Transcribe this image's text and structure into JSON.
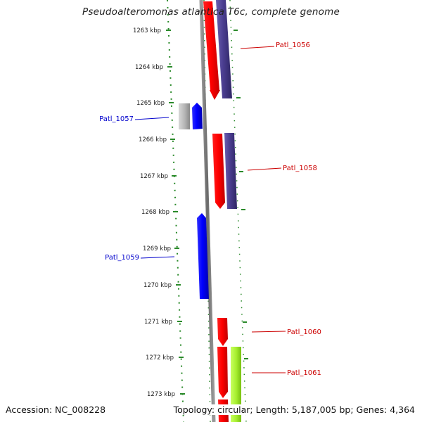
{
  "title": "Pseudoalteromonas atlantica T6c, complete genome",
  "accession": "Accession: NC_008228",
  "summary": "Topology: circular; Length: 5,187,005 bp; Genes: 4,364",
  "colors": {
    "forward": "#ff0000",
    "reverse": "#0000ff",
    "other": "#4a3d8f",
    "grey": "#b0b0b0",
    "green": "#a8f030",
    "tick": "#2a8a2a",
    "label_red": "#cc0000",
    "label_blue": "#0000cc"
  },
  "axis": {
    "ticks": [
      "1263 kbp",
      "1264 kbp",
      "1265 kbp",
      "1266 kbp",
      "1267 kbp",
      "1268 kbp",
      "1269 kbp",
      "1270 kbp",
      "1271 kbp",
      "1272 kbp",
      "1273 kbp"
    ]
  },
  "genes": [
    {
      "label": "Patl_1056",
      "color": "red"
    },
    {
      "label": "Patl_1057",
      "color": "blue"
    },
    {
      "label": "Patl_1058",
      "color": "red"
    },
    {
      "label": "Patl_1059",
      "color": "blue"
    },
    {
      "label": "Patl_1060",
      "color": "red"
    },
    {
      "label": "Patl_1061",
      "color": "red"
    }
  ]
}
